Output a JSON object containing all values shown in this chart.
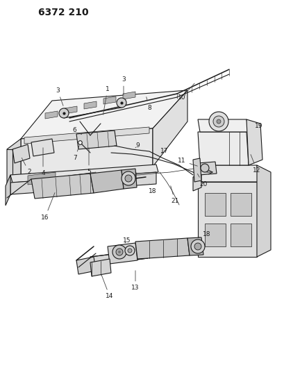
{
  "title": "6372 210",
  "bg_color": "#ffffff",
  "line_color": "#1a1a1a",
  "fig_width": 4.1,
  "fig_height": 5.33,
  "dpi": 100
}
